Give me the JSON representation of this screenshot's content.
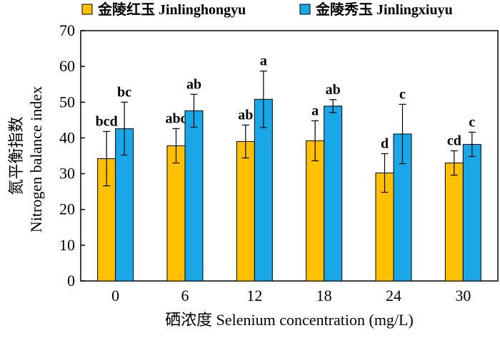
{
  "chart_data": {
    "type": "bar",
    "title": "",
    "xlabel": "硒浓度 Selenium concentration (mg/L)",
    "ylabel_cn": "氮平衡指数",
    "ylabel_en": "Nitrogen balance index",
    "ylim": [
      0,
      70
    ],
    "yticks": [
      0,
      10,
      20,
      30,
      40,
      50,
      60,
      70
    ],
    "categories": [
      "0",
      "6",
      "12",
      "18",
      "24",
      "30"
    ],
    "series": [
      {
        "name": "金陵红玉 Jinlinghongyu",
        "color": "#FFC000",
        "values": [
          34.2,
          37.8,
          39.0,
          39.2,
          30.2,
          33.0
        ],
        "errors": [
          7.6,
          4.8,
          4.6,
          5.6,
          5.4,
          3.4
        ],
        "labels": [
          "bcd",
          "abc",
          "ab",
          "a",
          "d",
          "cd"
        ]
      },
      {
        "name": "金陵秀玉 Jinlingxiuyu",
        "color": "#1AA7E8",
        "values": [
          42.6,
          47.6,
          50.8,
          48.9,
          41.1,
          38.2
        ],
        "errors": [
          7.4,
          4.6,
          7.9,
          1.8,
          8.3,
          3.4
        ],
        "labels": [
          "bc",
          "ab",
          "a",
          "ab",
          "c",
          "c"
        ]
      }
    ],
    "legend_position": "top",
    "grid": false
  }
}
